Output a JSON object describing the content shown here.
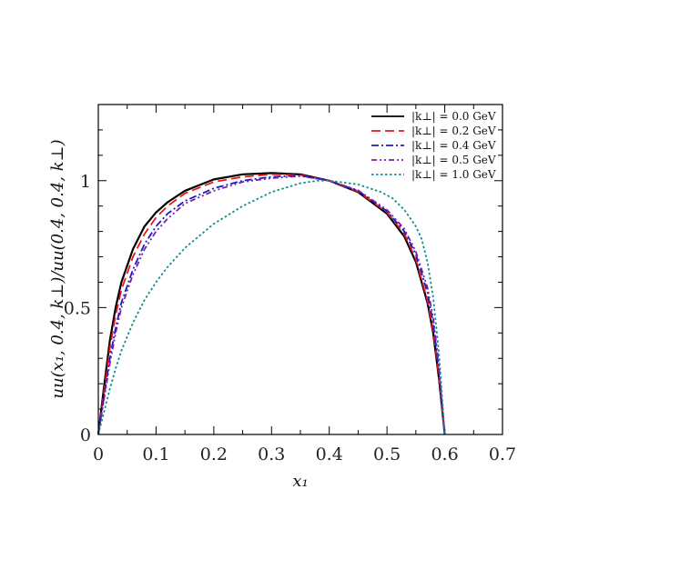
{
  "chart_data": {
    "type": "line",
    "title": "",
    "xlabel": "x₁",
    "ylabel": "uu(x₁, 0.4, k⊥)/uu(0.4, 0.4, k⊥)",
    "xlim": [
      0,
      0.7
    ],
    "ylim": [
      0,
      1.3
    ],
    "xticks": [
      "0",
      "0.1",
      "0.2",
      "0.3",
      "0.4",
      "0.5",
      "0.6",
      "0.7"
    ],
    "yticks": [
      "0",
      "0.5",
      "1"
    ],
    "grid": false,
    "legend_position": "top-right",
    "series": [
      {
        "name": "|k⊥| = 0.0 GeV",
        "color": "#000000",
        "dash": "solid",
        "points": [
          [
            0,
            0
          ],
          [
            0.01,
            0.19
          ],
          [
            0.02,
            0.37
          ],
          [
            0.03,
            0.5
          ],
          [
            0.04,
            0.6
          ],
          [
            0.06,
            0.73
          ],
          [
            0.08,
            0.82
          ],
          [
            0.1,
            0.875
          ],
          [
            0.12,
            0.915
          ],
          [
            0.15,
            0.96
          ],
          [
            0.2,
            1.005
          ],
          [
            0.25,
            1.025
          ],
          [
            0.3,
            1.03
          ],
          [
            0.35,
            1.025
          ],
          [
            0.4,
            1.0
          ],
          [
            0.45,
            0.955
          ],
          [
            0.5,
            0.87
          ],
          [
            0.53,
            0.78
          ],
          [
            0.55,
            0.68
          ],
          [
            0.57,
            0.52
          ],
          [
            0.58,
            0.4
          ],
          [
            0.59,
            0.22
          ],
          [
            0.6,
            0.0
          ]
        ]
      },
      {
        "name": "|k⊥| = 0.2 GeV",
        "color": "#e41a1c",
        "dash": "long-dash",
        "points": [
          [
            0,
            0
          ],
          [
            0.01,
            0.17
          ],
          [
            0.02,
            0.34
          ],
          [
            0.03,
            0.47
          ],
          [
            0.04,
            0.57
          ],
          [
            0.06,
            0.7
          ],
          [
            0.08,
            0.79
          ],
          [
            0.1,
            0.855
          ],
          [
            0.12,
            0.9
          ],
          [
            0.15,
            0.95
          ],
          [
            0.2,
            0.995
          ],
          [
            0.25,
            1.015
          ],
          [
            0.3,
            1.025
          ],
          [
            0.35,
            1.022
          ],
          [
            0.4,
            1.0
          ],
          [
            0.45,
            0.957
          ],
          [
            0.5,
            0.875
          ],
          [
            0.53,
            0.79
          ],
          [
            0.55,
            0.69
          ],
          [
            0.57,
            0.53
          ],
          [
            0.58,
            0.41
          ],
          [
            0.59,
            0.23
          ],
          [
            0.6,
            0.0
          ]
        ]
      },
      {
        "name": "|k⊥| = 0.4 GeV",
        "color": "#1a1acc",
        "dash": "dash-dot",
        "points": [
          [
            0,
            0
          ],
          [
            0.01,
            0.15
          ],
          [
            0.02,
            0.3
          ],
          [
            0.03,
            0.42
          ],
          [
            0.04,
            0.52
          ],
          [
            0.06,
            0.65
          ],
          [
            0.08,
            0.75
          ],
          [
            0.1,
            0.82
          ],
          [
            0.12,
            0.87
          ],
          [
            0.15,
            0.92
          ],
          [
            0.2,
            0.97
          ],
          [
            0.25,
            1.0
          ],
          [
            0.3,
            1.015
          ],
          [
            0.35,
            1.02
          ],
          [
            0.4,
            1.0
          ],
          [
            0.45,
            0.96
          ],
          [
            0.5,
            0.88
          ],
          [
            0.53,
            0.8
          ],
          [
            0.55,
            0.71
          ],
          [
            0.57,
            0.56
          ],
          [
            0.58,
            0.44
          ],
          [
            0.59,
            0.25
          ],
          [
            0.6,
            0.0
          ]
        ]
      },
      {
        "name": "|k⊥| = 0.5 GeV",
        "color": "#7b1fa2",
        "dash": "dash-dot-dot",
        "points": [
          [
            0,
            0
          ],
          [
            0.01,
            0.14
          ],
          [
            0.02,
            0.28
          ],
          [
            0.03,
            0.4
          ],
          [
            0.04,
            0.5
          ],
          [
            0.06,
            0.63
          ],
          [
            0.08,
            0.73
          ],
          [
            0.1,
            0.8
          ],
          [
            0.12,
            0.85
          ],
          [
            0.15,
            0.91
          ],
          [
            0.2,
            0.96
          ],
          [
            0.25,
            0.995
          ],
          [
            0.3,
            1.01
          ],
          [
            0.35,
            1.018
          ],
          [
            0.4,
            1.0
          ],
          [
            0.45,
            0.962
          ],
          [
            0.5,
            0.885
          ],
          [
            0.53,
            0.81
          ],
          [
            0.55,
            0.72
          ],
          [
            0.57,
            0.58
          ],
          [
            0.58,
            0.46
          ],
          [
            0.59,
            0.27
          ],
          [
            0.6,
            0.0
          ]
        ]
      },
      {
        "name": "|k⊥| = 1.0 GeV",
        "color": "#138d90",
        "dash": "dotted",
        "points": [
          [
            0,
            0
          ],
          [
            0.01,
            0.09
          ],
          [
            0.02,
            0.18
          ],
          [
            0.03,
            0.26
          ],
          [
            0.04,
            0.33
          ],
          [
            0.06,
            0.44
          ],
          [
            0.08,
            0.53
          ],
          [
            0.1,
            0.6
          ],
          [
            0.12,
            0.66
          ],
          [
            0.15,
            0.735
          ],
          [
            0.2,
            0.83
          ],
          [
            0.25,
            0.9
          ],
          [
            0.3,
            0.955
          ],
          [
            0.35,
            0.99
          ],
          [
            0.38,
            1.0
          ],
          [
            0.4,
            1.0
          ],
          [
            0.45,
            0.985
          ],
          [
            0.49,
            0.955
          ],
          [
            0.51,
            0.93
          ],
          [
            0.53,
            0.885
          ],
          [
            0.55,
            0.82
          ],
          [
            0.56,
            0.77
          ],
          [
            0.57,
            0.68
          ],
          [
            0.58,
            0.54
          ],
          [
            0.59,
            0.32
          ],
          [
            0.6,
            0.0
          ]
        ]
      }
    ]
  }
}
